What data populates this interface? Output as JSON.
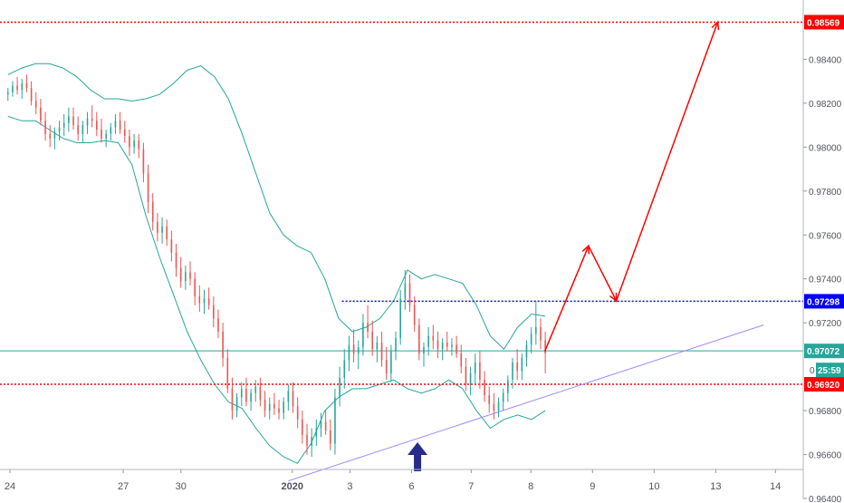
{
  "chart_data": {
    "type": "candlestick",
    "title": "",
    "xlabel": "",
    "ylabel": "",
    "ylim": [
      0.964,
      0.9867
    ],
    "y_ticks": [
      {
        "value": 0.964,
        "label": "0.96400"
      },
      {
        "value": 0.966,
        "label": "0.96600"
      },
      {
        "value": 0.968,
        "label": "0.96800"
      },
      {
        "value": 0.972,
        "label": "0.97200"
      },
      {
        "value": 0.974,
        "label": "0.97400"
      },
      {
        "value": 0.976,
        "label": "0.97600"
      },
      {
        "value": 0.978,
        "label": "0.97800"
      },
      {
        "value": 0.98,
        "label": "0.98000"
      },
      {
        "value": 0.982,
        "label": "0.98200"
      },
      {
        "value": 0.984,
        "label": "0.98400"
      }
    ],
    "x_ticks": [
      {
        "index": 1,
        "label": "24",
        "bold": false
      },
      {
        "index": 58,
        "label": "27",
        "bold": false
      },
      {
        "index": 87,
        "label": "30",
        "bold": false
      },
      {
        "index": 143,
        "label": "2020",
        "bold": true
      },
      {
        "index": 172,
        "label": "3",
        "bold": false
      },
      {
        "index": 203,
        "label": "6",
        "bold": false
      },
      {
        "index": 233,
        "label": "7",
        "bold": false
      },
      {
        "index": 263,
        "label": "8",
        "bold": false
      },
      {
        "index": 294,
        "label": "9",
        "bold": false
      },
      {
        "index": 325,
        "label": "10",
        "bold": false
      },
      {
        "index": 356,
        "label": "13",
        "bold": false
      },
      {
        "index": 386,
        "label": "14",
        "bold": false
      }
    ],
    "x_visible_range": [
      -4,
      400
    ],
    "series_candles_ohlc": [
      [
        0.9824,
        0.9827,
        0.9821,
        0.9825
      ],
      [
        0.9825,
        0.983,
        0.9823,
        0.9828
      ],
      [
        0.9828,
        0.9832,
        0.9824,
        0.9826
      ],
      [
        0.9826,
        0.9831,
        0.9822,
        0.9829
      ],
      [
        0.9829,
        0.9833,
        0.9825,
        0.9827
      ],
      [
        0.9827,
        0.983,
        0.9819,
        0.9821
      ],
      [
        0.9821,
        0.9825,
        0.9815,
        0.9818
      ],
      [
        0.9818,
        0.9822,
        0.981,
        0.9812
      ],
      [
        0.9812,
        0.9816,
        0.9803,
        0.9806
      ],
      [
        0.9806,
        0.981,
        0.98,
        0.9804
      ],
      [
        0.9804,
        0.9809,
        0.9799,
        0.9807
      ],
      [
        0.9807,
        0.9812,
        0.9803,
        0.9809
      ],
      [
        0.9809,
        0.9815,
        0.9805,
        0.9811
      ],
      [
        0.9811,
        0.9818,
        0.9807,
        0.9814
      ],
      [
        0.9814,
        0.9818,
        0.9808,
        0.981
      ],
      [
        0.981,
        0.9814,
        0.9803,
        0.9806
      ],
      [
        0.9806,
        0.9812,
        0.9802,
        0.981
      ],
      [
        0.981,
        0.9816,
        0.9806,
        0.9813
      ],
      [
        0.9813,
        0.9819,
        0.9809,
        0.9812
      ],
      [
        0.9812,
        0.9816,
        0.9805,
        0.9808
      ],
      [
        0.9808,
        0.9813,
        0.9802,
        0.9804
      ],
      [
        0.9804,
        0.9808,
        0.98,
        0.9806
      ],
      [
        0.9806,
        0.9811,
        0.9803,
        0.9809
      ],
      [
        0.9809,
        0.9815,
        0.9806,
        0.9812
      ],
      [
        0.9812,
        0.9816,
        0.9806,
        0.9808
      ],
      [
        0.9808,
        0.9812,
        0.9802,
        0.9805
      ],
      [
        0.9805,
        0.9808,
        0.9796,
        0.98
      ],
      [
        0.98,
        0.9806,
        0.9797,
        0.9803
      ],
      [
        0.9803,
        0.9806,
        0.9795,
        0.9799
      ],
      [
        0.9799,
        0.9802,
        0.9784,
        0.9788
      ],
      [
        0.9788,
        0.9792,
        0.977,
        0.9775
      ],
      [
        0.9775,
        0.9779,
        0.9762,
        0.9766
      ],
      [
        0.9766,
        0.977,
        0.9757,
        0.9761
      ],
      [
        0.9761,
        0.9768,
        0.9756,
        0.9764
      ],
      [
        0.9764,
        0.9767,
        0.9755,
        0.9758
      ],
      [
        0.9758,
        0.9762,
        0.9748,
        0.9752
      ],
      [
        0.9752,
        0.9756,
        0.9741,
        0.9745
      ],
      [
        0.9745,
        0.975,
        0.9736,
        0.9739
      ],
      [
        0.9739,
        0.9746,
        0.9735,
        0.9743
      ],
      [
        0.9743,
        0.9748,
        0.9737,
        0.974
      ],
      [
        0.974,
        0.9743,
        0.9728,
        0.9732
      ],
      [
        0.9732,
        0.9737,
        0.9725,
        0.9729
      ],
      [
        0.9729,
        0.9735,
        0.9724,
        0.9731
      ],
      [
        0.9731,
        0.9736,
        0.9726,
        0.9728
      ],
      [
        0.9728,
        0.9732,
        0.9718,
        0.9722
      ],
      [
        0.9722,
        0.9726,
        0.9713,
        0.9716
      ],
      [
        0.9716,
        0.972,
        0.97,
        0.9704
      ],
      [
        0.9704,
        0.9708,
        0.9688,
        0.969
      ],
      [
        0.969,
        0.9695,
        0.9676,
        0.968
      ],
      [
        0.968,
        0.9688,
        0.9677,
        0.9686
      ],
      [
        0.9686,
        0.9693,
        0.9682,
        0.969
      ],
      [
        0.969,
        0.9695,
        0.9682,
        0.9684
      ],
      [
        0.9684,
        0.969,
        0.968,
        0.9688
      ],
      [
        0.9688,
        0.9694,
        0.9684,
        0.9691
      ],
      [
        0.9691,
        0.9695,
        0.9682,
        0.9685
      ],
      [
        0.9685,
        0.9689,
        0.9677,
        0.968
      ],
      [
        0.968,
        0.9686,
        0.9676,
        0.9683
      ],
      [
        0.9683,
        0.9688,
        0.9678,
        0.9681
      ],
      [
        0.9681,
        0.9685,
        0.9676,
        0.9679
      ],
      [
        0.9679,
        0.9686,
        0.9676,
        0.9684
      ],
      [
        0.9684,
        0.9692,
        0.968,
        0.9689
      ],
      [
        0.9689,
        0.9693,
        0.9679,
        0.9682
      ],
      [
        0.9682,
        0.9686,
        0.9672,
        0.9676
      ],
      [
        0.9676,
        0.968,
        0.9665,
        0.9669
      ],
      [
        0.9669,
        0.9674,
        0.966,
        0.9664
      ],
      [
        0.9664,
        0.9672,
        0.9659,
        0.9668
      ],
      [
        0.9668,
        0.9676,
        0.9664,
        0.9672
      ],
      [
        0.9672,
        0.9679,
        0.9668,
        0.9675
      ],
      [
        0.9675,
        0.968,
        0.9669,
        0.9671
      ],
      [
        0.9671,
        0.9676,
        0.9662,
        0.9665
      ],
      [
        0.9665,
        0.969,
        0.966,
        0.9686
      ],
      [
        0.9686,
        0.97,
        0.9682,
        0.9695
      ],
      [
        0.9695,
        0.9708,
        0.969,
        0.9703
      ],
      [
        0.9703,
        0.9714,
        0.9698,
        0.971
      ],
      [
        0.971,
        0.9717,
        0.9702,
        0.9706
      ],
      [
        0.9706,
        0.9712,
        0.9699,
        0.9709
      ],
      [
        0.9709,
        0.9724,
        0.9705,
        0.972
      ],
      [
        0.972,
        0.9728,
        0.9713,
        0.9716
      ],
      [
        0.9716,
        0.9721,
        0.9705,
        0.9708
      ],
      [
        0.9708,
        0.9714,
        0.9702,
        0.9711
      ],
      [
        0.9711,
        0.9716,
        0.97,
        0.9703
      ],
      [
        0.9703,
        0.9709,
        0.9694,
        0.9697
      ],
      [
        0.9697,
        0.971,
        0.9693,
        0.9707
      ],
      [
        0.9707,
        0.9716,
        0.9703,
        0.9713
      ],
      [
        0.9713,
        0.9735,
        0.971,
        0.9731
      ],
      [
        0.9731,
        0.9744,
        0.9726,
        0.9738
      ],
      [
        0.9738,
        0.9742,
        0.9725,
        0.9728
      ],
      [
        0.9728,
        0.9732,
        0.9716,
        0.9719
      ],
      [
        0.9719,
        0.9722,
        0.9703,
        0.9706
      ],
      [
        0.9706,
        0.9711,
        0.97,
        0.9709
      ],
      [
        0.9709,
        0.9718,
        0.9705,
        0.9714
      ],
      [
        0.9714,
        0.9719,
        0.9708,
        0.9712
      ],
      [
        0.9712,
        0.9716,
        0.9704,
        0.9708
      ],
      [
        0.9708,
        0.9713,
        0.9703,
        0.9711
      ],
      [
        0.9711,
        0.9716,
        0.9707,
        0.9709
      ],
      [
        0.9709,
        0.9713,
        0.9705,
        0.971
      ],
      [
        0.971,
        0.9714,
        0.9704,
        0.9706
      ],
      [
        0.9706,
        0.971,
        0.9697,
        0.97
      ],
      [
        0.97,
        0.9704,
        0.9689,
        0.9692
      ],
      [
        0.9692,
        0.97,
        0.9687,
        0.9697
      ],
      [
        0.9697,
        0.9706,
        0.9692,
        0.9702
      ],
      [
        0.9702,
        0.9707,
        0.969,
        0.9694
      ],
      [
        0.9694,
        0.9698,
        0.9684,
        0.9687
      ],
      [
        0.9687,
        0.9691,
        0.9679,
        0.9683
      ],
      [
        0.9683,
        0.9688,
        0.9676,
        0.968
      ],
      [
        0.968,
        0.9686,
        0.9677,
        0.9684
      ],
      [
        0.9684,
        0.969,
        0.968,
        0.9688
      ],
      [
        0.9688,
        0.9696,
        0.9684,
        0.9694
      ],
      [
        0.9694,
        0.9704,
        0.969,
        0.9702
      ],
      [
        0.9702,
        0.9708,
        0.9694,
        0.9698
      ],
      [
        0.9698,
        0.9706,
        0.9694,
        0.9704
      ],
      [
        0.9704,
        0.9712,
        0.97,
        0.971
      ],
      [
        0.971,
        0.9718,
        0.9706,
        0.9715
      ],
      [
        0.9715,
        0.973,
        0.971,
        0.9718
      ],
      [
        0.9718,
        0.9722,
        0.9708,
        0.9712
      ],
      [
        0.9712,
        0.9716,
        0.9697,
        0.9706
      ]
    ],
    "bollinger_upper": [
      0.9833,
      0.9836,
      0.9838,
      0.9838,
      0.9836,
      0.9832,
      0.9826,
      0.9822,
      0.9822,
      0.9821,
      0.9822,
      0.9824,
      0.9829,
      0.9835,
      0.9837,
      0.9832,
      0.9822,
      0.9806,
      0.9788,
      0.977,
      0.976,
      0.9755,
      0.9752,
      0.974,
      0.9722,
      0.9716,
      0.9718,
      0.9722,
      0.973,
      0.9744,
      0.974,
      0.9742,
      0.974,
      0.9738,
      0.9728,
      0.9714,
      0.9708,
      0.9718,
      0.9724,
      0.9723
    ],
    "bollinger_lower": [
      0.9814,
      0.9812,
      0.9812,
      0.9808,
      0.9804,
      0.9802,
      0.9802,
      0.9803,
      0.9802,
      0.9792,
      0.9769,
      0.975,
      0.9733,
      0.9716,
      0.9703,
      0.9692,
      0.9684,
      0.9681,
      0.9672,
      0.9664,
      0.9659,
      0.9656,
      0.9665,
      0.968,
      0.9686,
      0.969,
      0.969,
      0.9692,
      0.9694,
      0.969,
      0.9688,
      0.969,
      0.9694,
      0.969,
      0.968,
      0.9672,
      0.9676,
      0.9678,
      0.9676,
      0.968
    ],
    "lines": [
      {
        "name": "resistance-top",
        "value": 0.98569,
        "label": "0.98569",
        "style": "dotted",
        "color": "#ff0000"
      },
      {
        "name": "resistance-mid",
        "value": 0.97298,
        "label": "0.97298",
        "style": "dotted",
        "color": "#0000ff"
      },
      {
        "name": "current-price",
        "value": 0.97072,
        "label": "0.97072",
        "style": "solid",
        "color": "#26a69a"
      },
      {
        "name": "support",
        "value": 0.9692,
        "label": "0.96920",
        "style": "dotted",
        "color": "#ff0000"
      }
    ],
    "trendline": {
      "from": [
        141,
        0.9648
      ],
      "to": [
        380,
        0.9719
      ],
      "color": "#9b8cff"
    },
    "projection_path": {
      "points": [
        [
          270,
          0.9707
        ],
        [
          292,
          0.9755
        ],
        [
          306,
          0.973
        ],
        [
          357,
          0.9857
        ]
      ],
      "color": "#ff0000"
    },
    "countdown": "25:59",
    "countdown_prefix": "0",
    "signal_arrow": {
      "direction": "up",
      "x_index": 206,
      "color": "#262c8c"
    }
  }
}
